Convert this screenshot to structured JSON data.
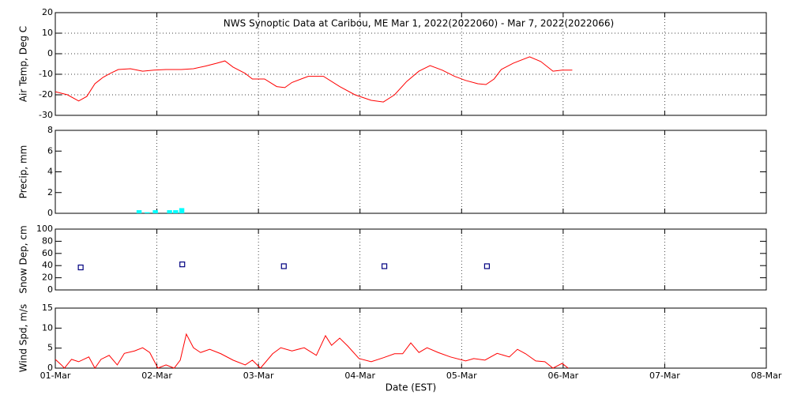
{
  "chart_data": [
    {
      "type": "line",
      "title": "NWS Synoptic Data at Caribou, ME   Mar  1, 2022(2022060) - Mar  7, 2022(2022066)",
      "ylabel": "Air Temp, Deg C",
      "color": "#ff0000",
      "grid": "both",
      "xlim": [
        0,
        7
      ],
      "xticks": [
        0,
        1,
        2,
        3,
        4,
        5,
        6,
        7
      ],
      "ylim": [
        -30,
        20
      ],
      "yticks": [
        -30,
        -20,
        -10,
        0,
        10,
        20
      ],
      "x": [
        0,
        0.12,
        0.23,
        0.31,
        0.39,
        0.47,
        0.54,
        0.62,
        0.74,
        0.86,
        0.97,
        1.09,
        1.24,
        1.36,
        1.48,
        1.59,
        1.67,
        1.75,
        1.87,
        1.94,
        2.06,
        2.18,
        2.26,
        2.33,
        2.49,
        2.64,
        2.8,
        2.95,
        3.11,
        3.23,
        3.34,
        3.46,
        3.58,
        3.69,
        3.81,
        3.93,
        4.04,
        4.16,
        4.24,
        4.32,
        4.39,
        4.51,
        4.67,
        4.78,
        4.9,
        4.99,
        5.09
      ],
      "values": [
        -18.5,
        -20,
        -23,
        -20.8,
        -14.6,
        -11.5,
        -9.6,
        -7.7,
        -7.3,
        -8.5,
        -8,
        -7.7,
        -7.7,
        -7.3,
        -6,
        -4.6,
        -3.5,
        -6.5,
        -9.6,
        -12.3,
        -12.3,
        -16,
        -16.5,
        -14,
        -11,
        -11,
        -16,
        -20,
        -22.7,
        -23.5,
        -20,
        -13.5,
        -8.5,
        -5.8,
        -8,
        -11,
        -13,
        -14.6,
        -15,
        -12.3,
        -7.7,
        -4.6,
        -1.5,
        -3.8,
        -8.5,
        -8,
        -8
      ]
    },
    {
      "type": "bar",
      "ylabel": "Precip, mm",
      "color": "#00ffff",
      "grid": "x",
      "xlim": [
        0,
        7
      ],
      "xticks": [
        0,
        1,
        2,
        3,
        4,
        5,
        6,
        7
      ],
      "ylim": [
        0,
        8
      ],
      "yticks": [
        0,
        2,
        4,
        6,
        8
      ],
      "x": [
        0.8,
        0.88,
        0.96,
        1.04,
        1.1,
        1.16,
        1.22
      ],
      "values": [
        0.3,
        0.1,
        0.3,
        0,
        0.3,
        0.3,
        0.5
      ]
    },
    {
      "type": "scatter",
      "ylabel": "Snow Dep, cm",
      "color": "#000080",
      "grid": "x",
      "xlim": [
        0,
        7
      ],
      "xticks": [
        0,
        1,
        2,
        3,
        4,
        5,
        6,
        7
      ],
      "ylim": [
        0,
        100
      ],
      "yticks": [
        0,
        20,
        40,
        60,
        80,
        100
      ],
      "x": [
        0.25,
        1.25,
        2.25,
        3.24,
        4.25
      ],
      "values": [
        37,
        42,
        39,
        39,
        39
      ]
    },
    {
      "type": "line",
      "ylabel": "Wind Spd, m/s",
      "xlabel": "Date (EST)",
      "color": "#ff0000",
      "grid": "x",
      "xlim": [
        0,
        7
      ],
      "xticks": [
        {
          "value": 0,
          "label": "01-Mar"
        },
        {
          "value": 1,
          "label": "02-Mar"
        },
        {
          "value": 2,
          "label": "03-Mar"
        },
        {
          "value": 3,
          "label": "04-Mar"
        },
        {
          "value": 4,
          "label": "05-Mar"
        },
        {
          "value": 5,
          "label": "06-Mar"
        },
        {
          "value": 6,
          "label": "07-Mar"
        },
        {
          "value": 7,
          "label": "08-Mar"
        }
      ],
      "ylim": [
        0,
        15
      ],
      "yticks": [
        0,
        5,
        10,
        15
      ],
      "x": [
        0,
        0.06,
        0.09,
        0.16,
        0.23,
        0.33,
        0.39,
        0.45,
        0.53,
        0.61,
        0.68,
        0.78,
        0.86,
        0.93,
        1.01,
        1.09,
        1.17,
        1.23,
        1.29,
        1.36,
        1.43,
        1.52,
        1.63,
        1.75,
        1.87,
        1.94,
        2.02,
        2.14,
        2.22,
        2.33,
        2.45,
        2.57,
        2.66,
        2.72,
        2.8,
        2.88,
        2.99,
        3.11,
        3.23,
        3.34,
        3.42,
        3.5,
        3.58,
        3.66,
        3.77,
        3.89,
        4.04,
        4.12,
        4.23,
        4.35,
        4.47,
        4.55,
        4.63,
        4.73,
        4.82,
        4.9,
        4.99,
        5.05
      ],
      "values": [
        2.2,
        0.8,
        0,
        2.2,
        1.6,
        2.8,
        0,
        2.2,
        3.2,
        0.8,
        3.7,
        4.3,
        5.1,
        3.9,
        0,
        0.8,
        0,
        2,
        8.5,
        5.1,
        3.9,
        4.7,
        3.6,
        2,
        0.8,
        2,
        0,
        3.6,
        5.1,
        4.3,
        5.1,
        3.2,
        8.1,
        5.7,
        7.5,
        5.5,
        2.4,
        1.6,
        2.6,
        3.6,
        3.6,
        6.3,
        3.9,
        5.1,
        3.9,
        2.8,
        1.8,
        2.4,
        2,
        3.7,
        2.8,
        4.7,
        3.6,
        1.8,
        1.6,
        0,
        1.2,
        0
      ]
    }
  ]
}
